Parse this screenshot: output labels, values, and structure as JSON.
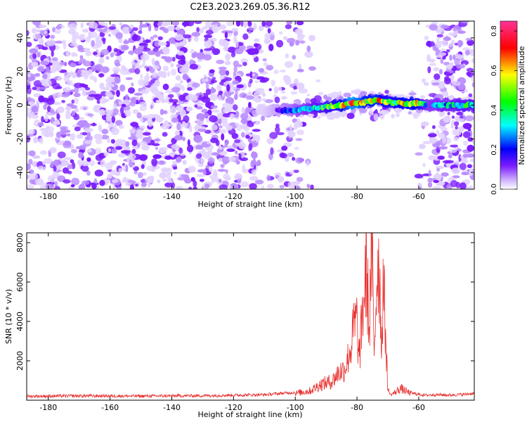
{
  "title": "C2E3.2023.269.05.36.R12",
  "chart_data": [
    {
      "type": "heatmap",
      "xlabel": "Height of straight line (km)",
      "ylabel": "Frequency (Hz)",
      "xlim": [
        -187,
        -42
      ],
      "ylim": [
        -50,
        50
      ],
      "xticks": [
        -180,
        -160,
        -140,
        -120,
        -100,
        -80,
        -60
      ],
      "yticks": [
        -40,
        -20,
        0,
        20,
        40
      ],
      "colorbar": {
        "label": "Normalized spectral amplitude",
        "range": [
          0,
          0.85
        ],
        "ticks": [
          0.0,
          0.2,
          0.4,
          0.6,
          0.8
        ],
        "colors": [
          "#ffffff",
          "#b98cff",
          "#6a00ff",
          "#0000ff",
          "#00ffff",
          "#00ff00",
          "#ffff00",
          "#ff0000",
          "#ff3399"
        ]
      },
      "noise_band": {
        "x": [
          -187,
          -100
        ],
        "level": 0.05,
        "color": "#7a1aff"
      },
      "gap_region": {
        "x": [
          -98,
          -57
        ],
        "freq_abs_gt": 8
      },
      "signal_track": [
        {
          "x": -110,
          "freq": -3,
          "amp": 0.08
        },
        {
          "x": -100,
          "freq": -3,
          "amp": 0.25
        },
        {
          "x": -95,
          "freq": -2,
          "amp": 0.35
        },
        {
          "x": -90,
          "freq": -1,
          "amp": 0.45
        },
        {
          "x": -85,
          "freq": 0,
          "amp": 0.55
        },
        {
          "x": -82,
          "freq": 1,
          "amp": 0.8
        },
        {
          "x": -80,
          "freq": 1,
          "amp": 0.75
        },
        {
          "x": -77,
          "freq": 2,
          "amp": 0.6
        },
        {
          "x": -74,
          "freq": 3,
          "amp": 0.65
        },
        {
          "x": -70,
          "freq": 2,
          "amp": 0.5
        },
        {
          "x": -65,
          "freq": 1,
          "amp": 0.6
        },
        {
          "x": -60,
          "freq": 1,
          "amp": 0.55
        },
        {
          "x": -57,
          "freq": 0,
          "amp": 0.3
        },
        {
          "x": -50,
          "freq": 0,
          "amp": 0.35
        },
        {
          "x": -45,
          "freq": 0,
          "amp": 0.4
        }
      ]
    },
    {
      "type": "line",
      "xlabel": "Height of straight line (km)",
      "ylabel": "SNR (10 * v/v)",
      "xlim": [
        -187,
        -42
      ],
      "ylim": [
        0,
        8500
      ],
      "xticks": [
        -180,
        -160,
        -140,
        -120,
        -100,
        -80,
        -60
      ],
      "yticks": [
        2000,
        4000,
        6000,
        8000
      ],
      "color": "#e8312f",
      "series": [
        {
          "x": [
            -187,
            -170,
            -150,
            -130,
            -110,
            -100,
            -95,
            -92,
            -90,
            -88,
            -86,
            -84,
            -82,
            -81,
            -80,
            -79.5,
            -79,
            -78,
            -77,
            -76.5,
            -76,
            -75.5,
            -75,
            -74.5,
            -74,
            -73.5,
            -73,
            -72.5,
            -72,
            -71.5,
            -71,
            -70.5,
            -70,
            -69,
            -68,
            -66,
            -64,
            -62,
            -60,
            -58,
            -55,
            -50,
            -45,
            -42
          ],
          "y": [
            200,
            220,
            210,
            230,
            280,
            400,
            550,
            900,
            1000,
            1100,
            1600,
            1800,
            3000,
            4300,
            4600,
            2500,
            3000,
            5500,
            7600,
            6000,
            4000,
            7800,
            8000,
            2500,
            5000,
            7500,
            8300,
            6000,
            3000,
            7000,
            5000,
            2800,
            600,
            250,
            400,
            700,
            500,
            350,
            300,
            250,
            280,
            260,
            300,
            350
          ]
        }
      ]
    }
  ]
}
